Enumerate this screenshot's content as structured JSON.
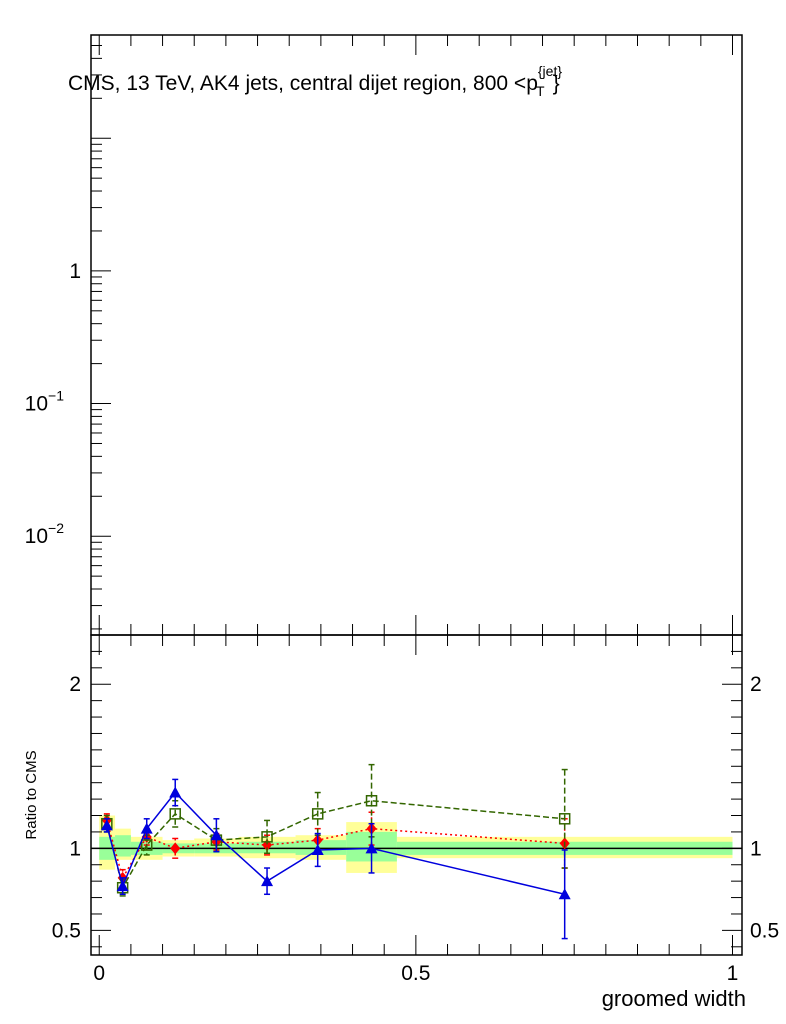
{
  "chart_data": {
    "type": "scatter",
    "title": "CMS, 13 TeV, AK4 jets, central dijet region, 800 <p",
    "title_sup": "{jet}",
    "title_sub": "T",
    "title_tail": "}",
    "xlabel": "groomed width",
    "upper": {
      "ylabel": "",
      "yscale": "log",
      "ylim": [
        0.0018,
        60
      ],
      "ticks": [
        {
          "value": 0.01,
          "base": "10",
          "exp": "−2"
        },
        {
          "value": 0.1,
          "base": "10",
          "exp": "−1"
        },
        {
          "value": 1,
          "base": "1",
          "exp": ""
        }
      ]
    },
    "lower": {
      "ylabel": "Ratio to CMS",
      "ylim": [
        0.35,
        2.3
      ],
      "major_ticks": [
        0.5,
        1,
        2
      ],
      "tick_labels": [
        "0.5",
        "1",
        "2"
      ],
      "reference_line": 1,
      "bands": [
        {
          "x0": 0.0,
          "x1": 0.025,
          "y_inner": [
            0.93,
            1.07
          ],
          "y_outer": [
            0.87,
            1.2
          ]
        },
        {
          "x0": 0.025,
          "x1": 0.05,
          "y_inner": [
            0.95,
            1.08
          ],
          "y_outer": [
            0.93,
            1.12
          ]
        },
        {
          "x0": 0.05,
          "x1": 0.1,
          "y_inner": [
            0.96,
            1.04
          ],
          "y_outer": [
            0.93,
            1.07
          ]
        },
        {
          "x0": 0.1,
          "x1": 0.15,
          "y_inner": [
            0.97,
            1.03
          ],
          "y_outer": [
            0.95,
            1.05
          ]
        },
        {
          "x0": 0.15,
          "x1": 0.22,
          "y_inner": [
            0.97,
            1.03
          ],
          "y_outer": [
            0.95,
            1.06
          ]
        },
        {
          "x0": 0.22,
          "x1": 0.31,
          "y_inner": [
            0.97,
            1.04
          ],
          "y_outer": [
            0.94,
            1.07
          ]
        },
        {
          "x0": 0.31,
          "x1": 0.39,
          "y_inner": [
            0.96,
            1.05
          ],
          "y_outer": [
            0.93,
            1.08
          ]
        },
        {
          "x0": 0.39,
          "x1": 0.47,
          "y_inner": [
            0.92,
            1.1
          ],
          "y_outer": [
            0.85,
            1.16
          ]
        },
        {
          "x0": 0.47,
          "x1": 1.0,
          "y_inner": [
            0.96,
            1.04
          ],
          "y_outer": [
            0.94,
            1.07
          ]
        }
      ]
    },
    "xlim": [
      0,
      1
    ],
    "x_major_ticks": [
      0,
      0.5,
      1
    ],
    "x_tick_labels": [
      "0",
      "0.5",
      "1"
    ],
    "series": [
      {
        "marker": "diamond",
        "color": "#ff0000",
        "dash": "2,3",
        "x": [
          0.012,
          0.037,
          0.075,
          0.12,
          0.185,
          0.265,
          0.345,
          0.43,
          0.735
        ],
        "y": [
          1.17,
          0.82,
          1.07,
          1.0,
          1.04,
          1.02,
          1.05,
          1.12,
          1.03
        ],
        "err": [
          0.04,
          0.05,
          0.05,
          0.06,
          0.05,
          0.06,
          0.07,
          0.1,
          0.15
        ]
      },
      {
        "marker": "open-square",
        "color": "#336600",
        "dash": "6,3",
        "x": [
          0.012,
          0.037,
          0.075,
          0.12,
          0.185,
          0.265,
          0.345,
          0.43,
          0.735
        ],
        "y": [
          1.15,
          0.76,
          1.02,
          1.21,
          1.05,
          1.07,
          1.21,
          1.29,
          1.18
        ],
        "err": [
          0.05,
          0.05,
          0.06,
          0.08,
          0.07,
          0.1,
          0.13,
          0.22,
          0.3
        ]
      },
      {
        "marker": "triangle",
        "color": "#0000dd",
        "dash": "",
        "x": [
          0.012,
          0.037,
          0.075,
          0.12,
          0.185,
          0.265,
          0.345,
          0.43,
          0.735
        ],
        "y": [
          1.14,
          0.77,
          1.12,
          1.34,
          1.08,
          0.8,
          0.99,
          1.0,
          0.72
        ],
        "err": [
          0.04,
          0.05,
          0.06,
          0.08,
          0.1,
          0.08,
          0.1,
          0.15,
          0.27
        ]
      }
    ]
  }
}
